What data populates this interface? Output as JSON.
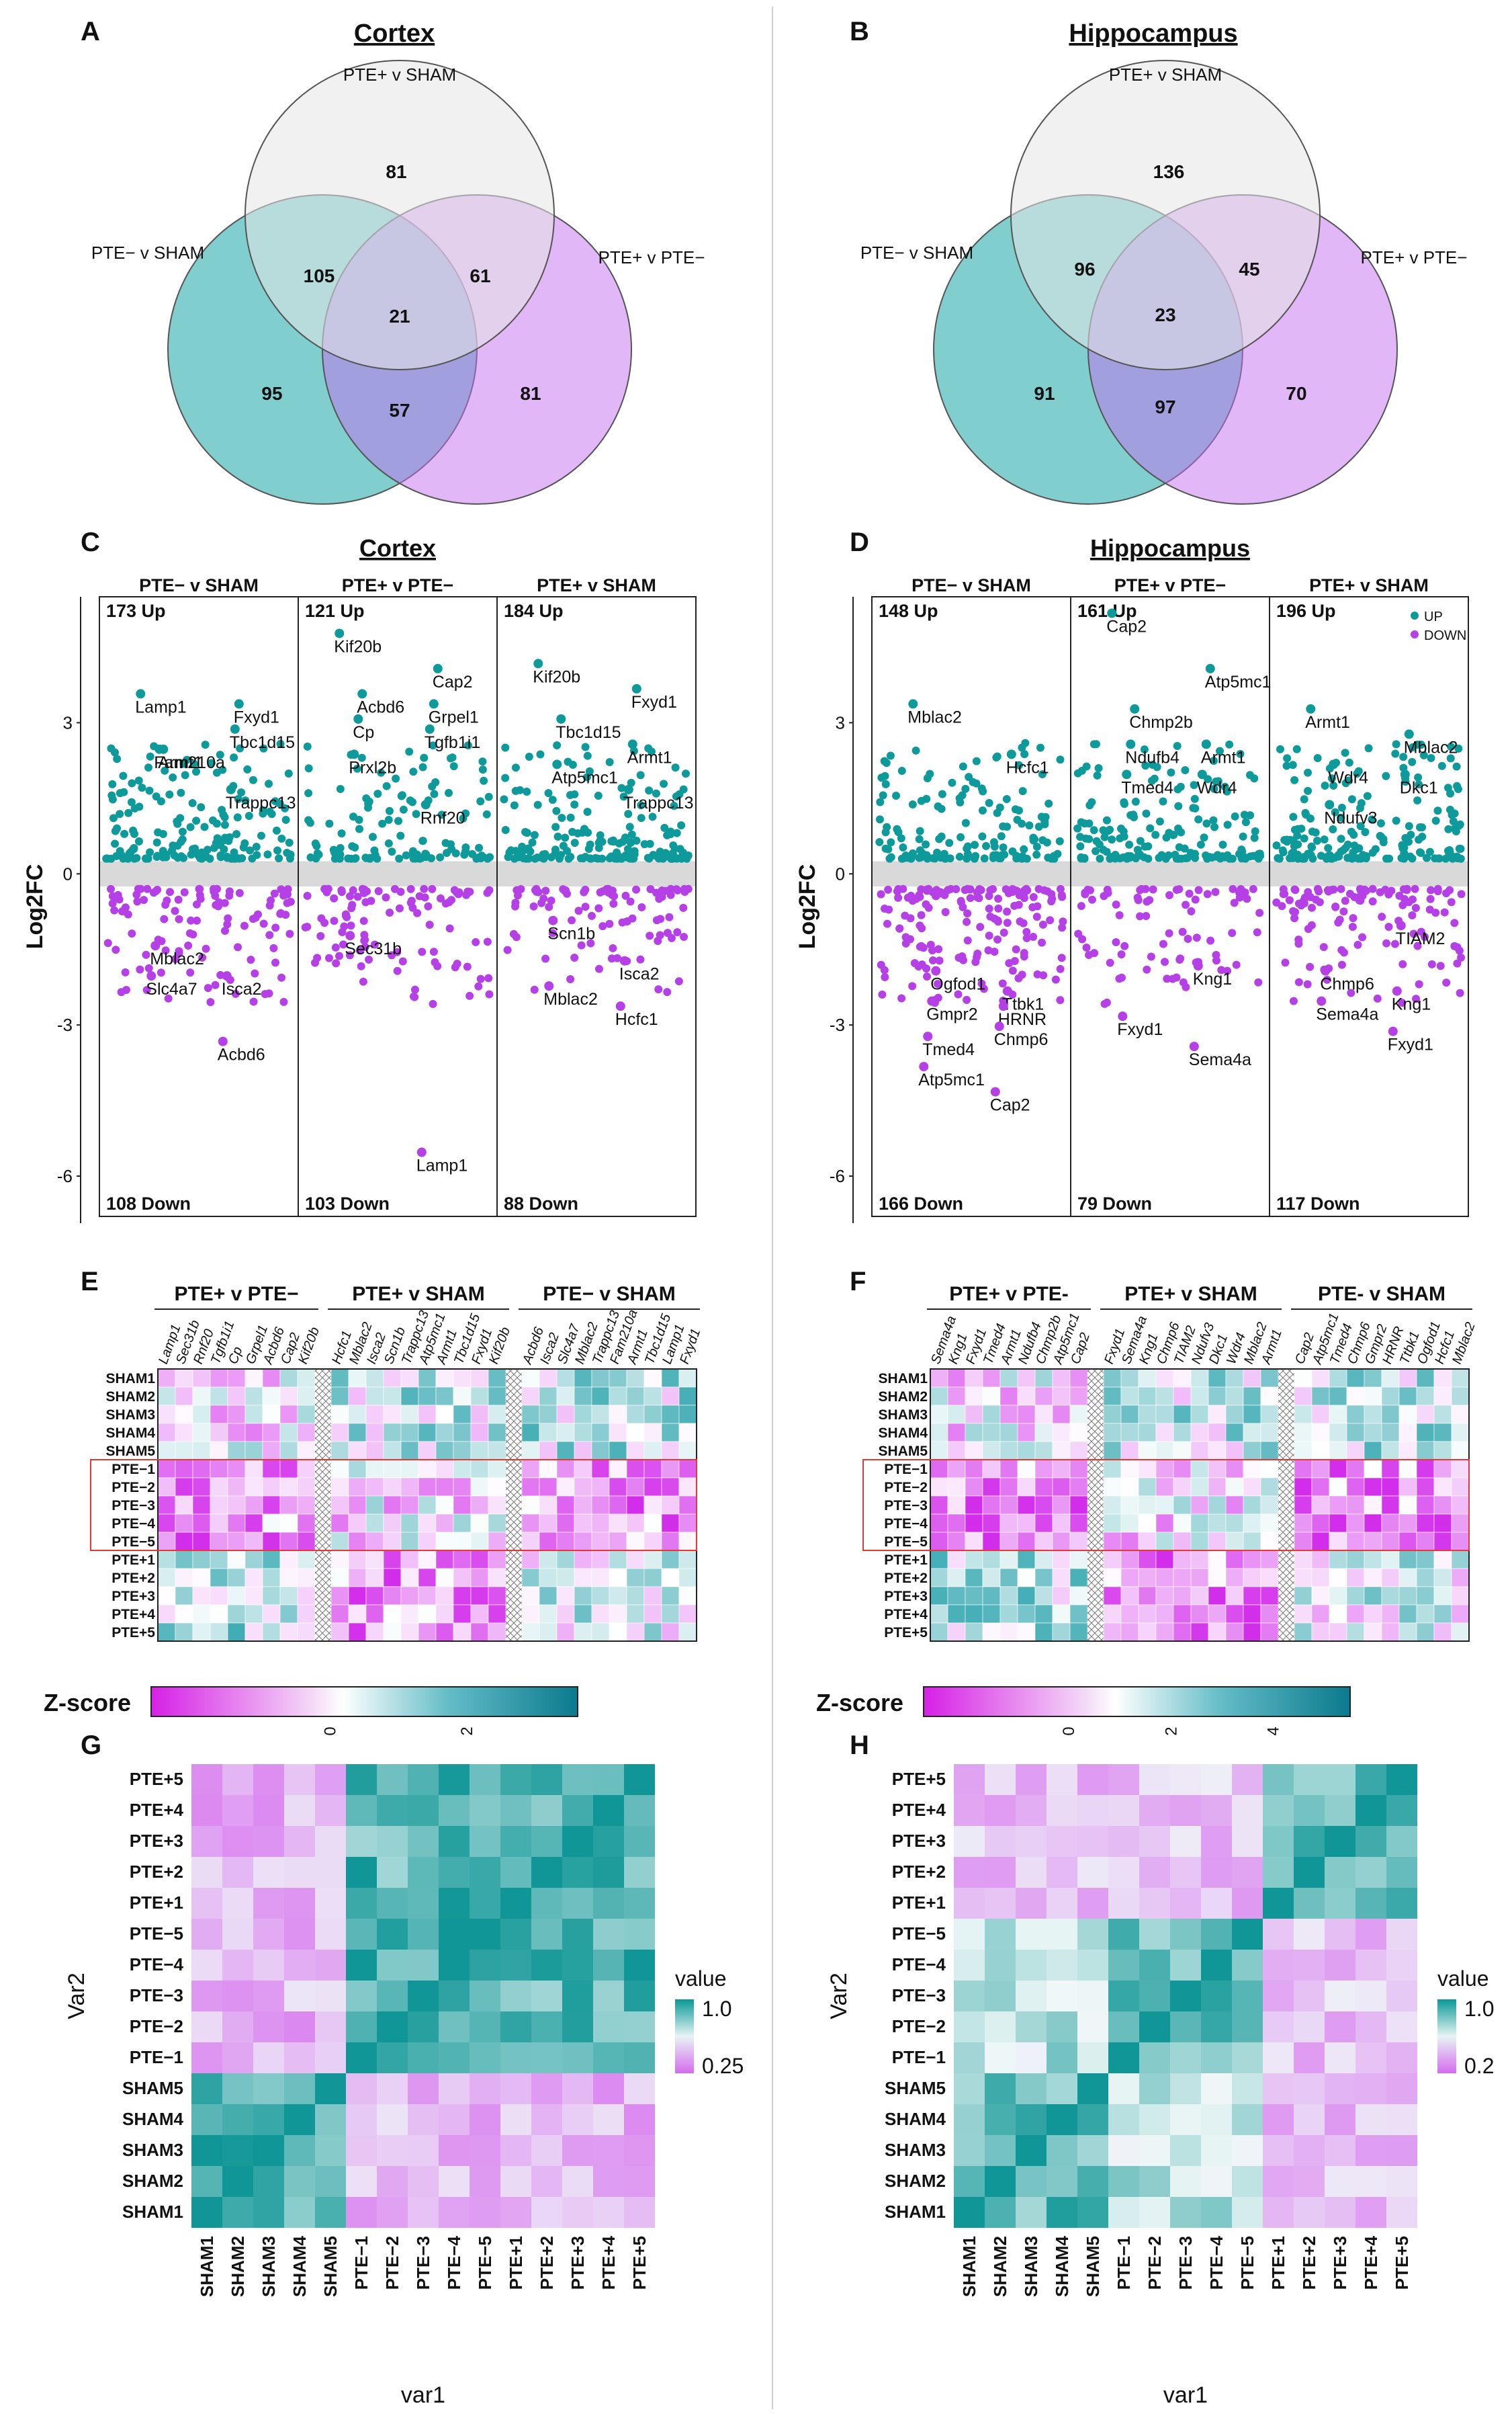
{
  "panels": {
    "A": "A",
    "B": "B",
    "C": "C",
    "D": "D",
    "E": "E",
    "F": "F",
    "G": "G",
    "H": "H"
  },
  "venn": [
    {
      "title": "Cortex",
      "labels": {
        "top": "PTE+ v SHAM",
        "left": "PTE− v SHAM",
        "right": "PTE+ v PTE−"
      },
      "counts": {
        "top": "81",
        "topleft": "105",
        "topright": "61",
        "center": "21",
        "left": "95",
        "bottom": "57",
        "right": "81"
      }
    },
    {
      "title": "Hippocampus",
      "labels": {
        "top": "PTE+ v SHAM",
        "left": "PTE− v SHAM",
        "right": "PTE+ v PTE−"
      },
      "counts": {
        "top": "136",
        "topleft": "96",
        "topright": "45",
        "center": "23",
        "left": "91",
        "bottom": "97",
        "right": "70"
      }
    }
  ],
  "chart_data": [
    {
      "type": "scatter",
      "title": "Cortex",
      "ylabel": "Log2FC",
      "ylim": [
        -6.8,
        5.5
      ],
      "yticks": [
        "3",
        "0",
        "-3",
        "-6"
      ],
      "facets": [
        {
          "name": "PTE− v SHAM",
          "up": "173 Up",
          "down": "108 Down",
          "n_up": 173,
          "n_down": 108,
          "labels": [
            {
              "text": "Lamp1",
              "v": 3.2
            },
            {
              "text": "Fxyd1",
              "v": 3.0
            },
            {
              "text": "Armt1",
              "v": 2.1
            },
            {
              "text": "Tbc1d15",
              "v": 2.5
            },
            {
              "text": "Fam210a",
              "v": 2.1
            },
            {
              "text": "Trappc13",
              "v": 1.3
            },
            {
              "text": "Mblac2",
              "v": -1.8
            },
            {
              "text": "Isca2",
              "v": -2.4
            },
            {
              "text": "Slc4a7",
              "v": -2.4
            },
            {
              "text": "Acbd6",
              "v": -3.7
            }
          ]
        },
        {
          "name": "PTE+ v PTE−",
          "up": "121 Up",
          "down": "103 Down",
          "n_up": 121,
          "n_down": 103,
          "labels": [
            {
              "text": "Kif20b",
              "v": 4.4
            },
            {
              "text": "Cap2",
              "v": 3.7
            },
            {
              "text": "Acbd6",
              "v": 3.2
            },
            {
              "text": "Grpel1",
              "v": 3.0
            },
            {
              "text": "Cp",
              "v": 2.7
            },
            {
              "text": "Tgfb1i1",
              "v": 2.5
            },
            {
              "text": "Prxl2b",
              "v": 2.0
            },
            {
              "text": "Rnf20",
              "v": 1.0
            },
            {
              "text": "Sec31b",
              "v": -1.6
            },
            {
              "text": "Lamp1",
              "v": -5.9
            }
          ]
        },
        {
          "name": "PTE+ v SHAM",
          "up": "184 Up",
          "down": "88 Down",
          "n_up": 184,
          "n_down": 88,
          "labels": [
            {
              "text": "Kif20b",
              "v": 3.8
            },
            {
              "text": "Fxyd1",
              "v": 3.3
            },
            {
              "text": "Tbc1d15",
              "v": 2.7
            },
            {
              "text": "Armt1",
              "v": 2.2
            },
            {
              "text": "Atp5mc1",
              "v": 1.8
            },
            {
              "text": "Trappc13",
              "v": 1.3
            },
            {
              "text": "Scn1b",
              "v": -1.3
            },
            {
              "text": "Isca2",
              "v": -2.1
            },
            {
              "text": "Mblac2",
              "v": -2.6
            },
            {
              "text": "Hcfc1",
              "v": -3.0
            }
          ]
        }
      ]
    },
    {
      "type": "scatter",
      "title": "Hippocampus",
      "ylabel": "Log2FC",
      "ylim": [
        -6.8,
        5.5
      ],
      "yticks": [
        "3",
        "0",
        "-3",
        "-6"
      ],
      "legend": {
        "up": "UP",
        "down": "DOWN",
        "position": "top-right"
      },
      "facets": [
        {
          "name": "PTE− v SHAM",
          "up": "148 Up",
          "down": "166 Down",
          "n_up": 148,
          "n_down": 166,
          "labels": [
            {
              "text": "Mblac2",
              "v": 3.0
            },
            {
              "text": "Hcfc1",
              "v": 2.0
            },
            {
              "text": "Ogfod1",
              "v": -2.3
            },
            {
              "text": "Ttbk1",
              "v": -2.7
            },
            {
              "text": "Gmpr2",
              "v": -2.9
            },
            {
              "text": "HRNR",
              "v": -3.0
            },
            {
              "text": "Tmed4",
              "v": -3.6
            },
            {
              "text": "Chmp6",
              "v": -3.4
            },
            {
              "text": "Atp5mc1",
              "v": -4.2
            },
            {
              "text": "Cap2",
              "v": -4.7
            }
          ]
        },
        {
          "name": "PTE+ v PTE−",
          "up": "161 Up",
          "down": "79 Down",
          "n_up": 161,
          "n_down": 79,
          "labels": [
            {
              "text": "Cap2",
              "v": 4.8
            },
            {
              "text": "Atp5mc1",
              "v": 3.7
            },
            {
              "text": "Chmp2b",
              "v": 2.9
            },
            {
              "text": "Armt1",
              "v": 2.2
            },
            {
              "text": "Ndufb4",
              "v": 2.2
            },
            {
              "text": "Wdr4",
              "v": 1.6
            },
            {
              "text": "Tmed4",
              "v": 1.6
            },
            {
              "text": "Kng1",
              "v": -2.2
            },
            {
              "text": "Fxyd1",
              "v": -3.2
            },
            {
              "text": "Sema4a",
              "v": -3.8
            }
          ]
        },
        {
          "name": "PTE+ v SHAM",
          "up": "196 Up",
          "down": "117 Down",
          "n_up": 196,
          "n_down": 117,
          "labels": [
            {
              "text": "Armt1",
              "v": 2.9
            },
            {
              "text": "Mblac2",
              "v": 2.4
            },
            {
              "text": "Wdr4",
              "v": 1.8
            },
            {
              "text": "Dkc1",
              "v": 1.6
            },
            {
              "text": "Ndufv3",
              "v": 1.0
            },
            {
              "text": "TIAM2",
              "v": -1.4
            },
            {
              "text": "Chmp6",
              "v": -2.3
            },
            {
              "text": "Kng1",
              "v": -2.7
            },
            {
              "text": "Sema4a",
              "v": -2.9
            },
            {
              "text": "Fxyd1",
              "v": -3.5
            }
          ]
        }
      ]
    },
    {
      "type": "heatmap",
      "panel": "E",
      "title": "",
      "groups": [
        "PTE+ v PTE−",
        "PTE+ v SHAM",
        "PTE− v SHAM"
      ],
      "columns": [
        [
          "Lamp1",
          "Sec31b",
          "Rnf20",
          "Tgfb1i1",
          "Cp",
          "Grpel1",
          "Acbd6",
          "Cap2",
          "Kif20b"
        ],
        [
          "Hcfc1",
          "Mblac2",
          "Isca2",
          "Scn1b",
          "Trappc13",
          "Atp5mc1",
          "Armt1",
          "Tbc1d15",
          "Fxyd1",
          "Kif20b"
        ],
        [
          "Acbd6",
          "Isca2",
          "Slc4a7",
          "Mblac2",
          "Trappc13",
          "Fam210a",
          "Armt1",
          "Tbc1d15",
          "Lamp1",
          "Fxyd1"
        ]
      ],
      "rows": [
        "SHAM1",
        "SHAM2",
        "SHAM3",
        "SHAM4",
        "SHAM5",
        "PTE−1",
        "PTE−2",
        "PTE−3",
        "PTE−4",
        "PTE−5",
        "PTE+1",
        "PTE+2",
        "PTE+3",
        "PTE+4",
        "PTE+5"
      ],
      "seed": 17
    },
    {
      "type": "heatmap",
      "panel": "F",
      "title": "",
      "groups": [
        "PTE+ v PTE-",
        "PTE+ v SHAM",
        "PTE- v SHAM"
      ],
      "columns": [
        [
          "Sema4a",
          "Kng1",
          "Fxyd1",
          "Tmed4",
          "Armt1",
          "Ndufb4",
          "Chmp2b",
          "Atp5mc1",
          "Cap2"
        ],
        [
          "Fxyd1",
          "Sema4a",
          "Kng1",
          "Chmp6",
          "TIAM2",
          "Ndufv3",
          "Dkc1",
          "Wdr4",
          "Mblac2",
          "Armt1"
        ],
        [
          "Cap2",
          "Atp5mc1",
          "Tmed4",
          "Chmp6",
          "Gmpr2",
          "HRNR",
          "Ttbk1",
          "Ogfod1",
          "Hcfc1",
          "Mblac2"
        ]
      ],
      "rows": [
        "SHAM1",
        "SHAM2",
        "SHAM3",
        "SHAM4",
        "SHAM5",
        "PTE−1",
        "PTE−2",
        "PTE−3",
        "PTE−4",
        "PTE−5",
        "PTE+1",
        "PTE+2",
        "PTE+3",
        "PTE+4",
        "PTE+5"
      ],
      "seed": 29
    },
    {
      "type": "heatmap",
      "panel": "G",
      "xlabel": "var1",
      "ylabel": "Var2",
      "categories": [
        "SHAM1",
        "SHAM2",
        "SHAM3",
        "SHAM4",
        "SHAM5",
        "PTE−1",
        "PTE−2",
        "PTE−3",
        "PTE−4",
        "PTE−5",
        "PTE+1",
        "PTE+2",
        "PTE+3",
        "PTE+4",
        "PTE+5"
      ],
      "legend": {
        "title": "value",
        "max": "1.0",
        "min": "0.25"
      }
    },
    {
      "type": "heatmap",
      "panel": "H",
      "xlabel": "var1",
      "ylabel": "Var2",
      "categories": [
        "SHAM1",
        "SHAM2",
        "SHAM3",
        "SHAM4",
        "SHAM5",
        "PTE−1",
        "PTE−2",
        "PTE−3",
        "PTE−4",
        "PTE−5",
        "PTE+1",
        "PTE+2",
        "PTE+3",
        "PTE+4",
        "PTE+5"
      ],
      "legend": {
        "title": "value",
        "max": "1.0",
        "min": "0.2"
      }
    }
  ],
  "zscore": [
    {
      "label": "Z-score",
      "ticks": [
        "0",
        "2"
      ]
    },
    {
      "label": "Z-score",
      "ticks": [
        "0",
        "2",
        "4"
      ]
    }
  ],
  "colors": {
    "up": "#0E9A9A",
    "down": "#B440E6",
    "teal": "#19A6A6",
    "purple": "#C470F0",
    "grey": "#EDEDED",
    "cellTeal": "#108F8F",
    "cellPink": "#E09AF2"
  }
}
